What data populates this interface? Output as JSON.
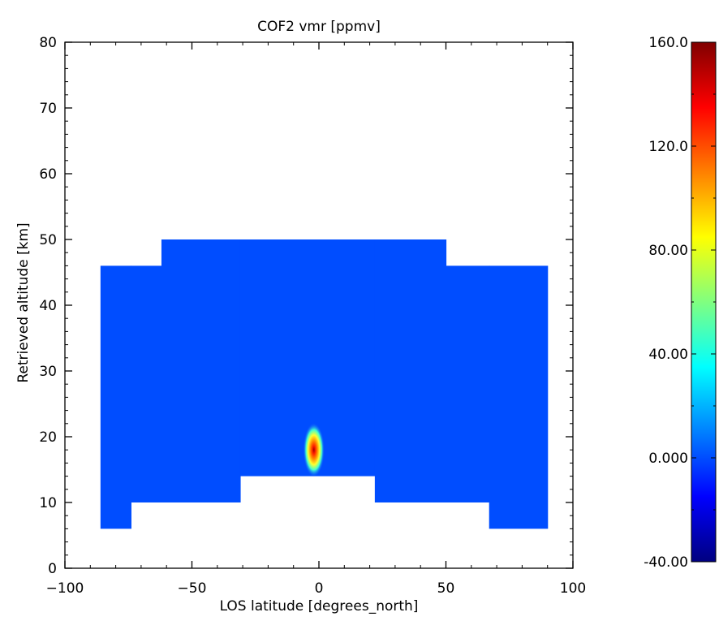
{
  "chart_data": {
    "type": "heatmap",
    "title": "COF2 vmr [ppmv]",
    "xlabel": "LOS latitude [degrees_north]",
    "ylabel": "Retrieved altitude [km]",
    "xlim": [
      -100,
      100
    ],
    "ylim": [
      0,
      80
    ],
    "xticks": [
      "−100",
      "−50",
      "0",
      "50",
      "100"
    ],
    "yticks": [
      "0",
      "10",
      "20",
      "30",
      "40",
      "50",
      "60",
      "70",
      "80"
    ],
    "background_value": 0.0,
    "filled_columns": [
      {
        "lat_from": -86,
        "lat_to": -74,
        "alt_from": 6,
        "alt_to": 46
      },
      {
        "lat_from": -74,
        "lat_to": -62,
        "alt_from": 10,
        "alt_to": 46
      },
      {
        "lat_from": -62,
        "lat_to": -31,
        "alt_from": 10,
        "alt_to": 50
      },
      {
        "lat_from": -31,
        "lat_to": 22,
        "alt_from": 14,
        "alt_to": 50
      },
      {
        "lat_from": 22,
        "lat_to": 50,
        "alt_from": 10,
        "alt_to": 50
      },
      {
        "lat_from": 50,
        "lat_to": 67,
        "alt_from": 10,
        "alt_to": 46
      },
      {
        "lat_from": 67,
        "lat_to": 90,
        "alt_from": 6,
        "alt_to": 46
      }
    ],
    "hotspot": {
      "lat": -2,
      "alt": 18,
      "peak_value": 160.0
    },
    "colorbar": {
      "min": -40.0,
      "max": 160.0,
      "tick_values": [
        -40,
        0,
        40,
        80,
        120,
        160
      ],
      "tick_labels": [
        "-40.00",
        "0.000",
        "40.00",
        "80.00",
        "120.0",
        "160.0"
      ],
      "colors": [
        "#000080",
        "#0000ff",
        "#0080ff",
        "#00ffff",
        "#80ff80",
        "#ffff00",
        "#ff8000",
        "#ff0000",
        "#800000"
      ]
    },
    "grid": false
  }
}
